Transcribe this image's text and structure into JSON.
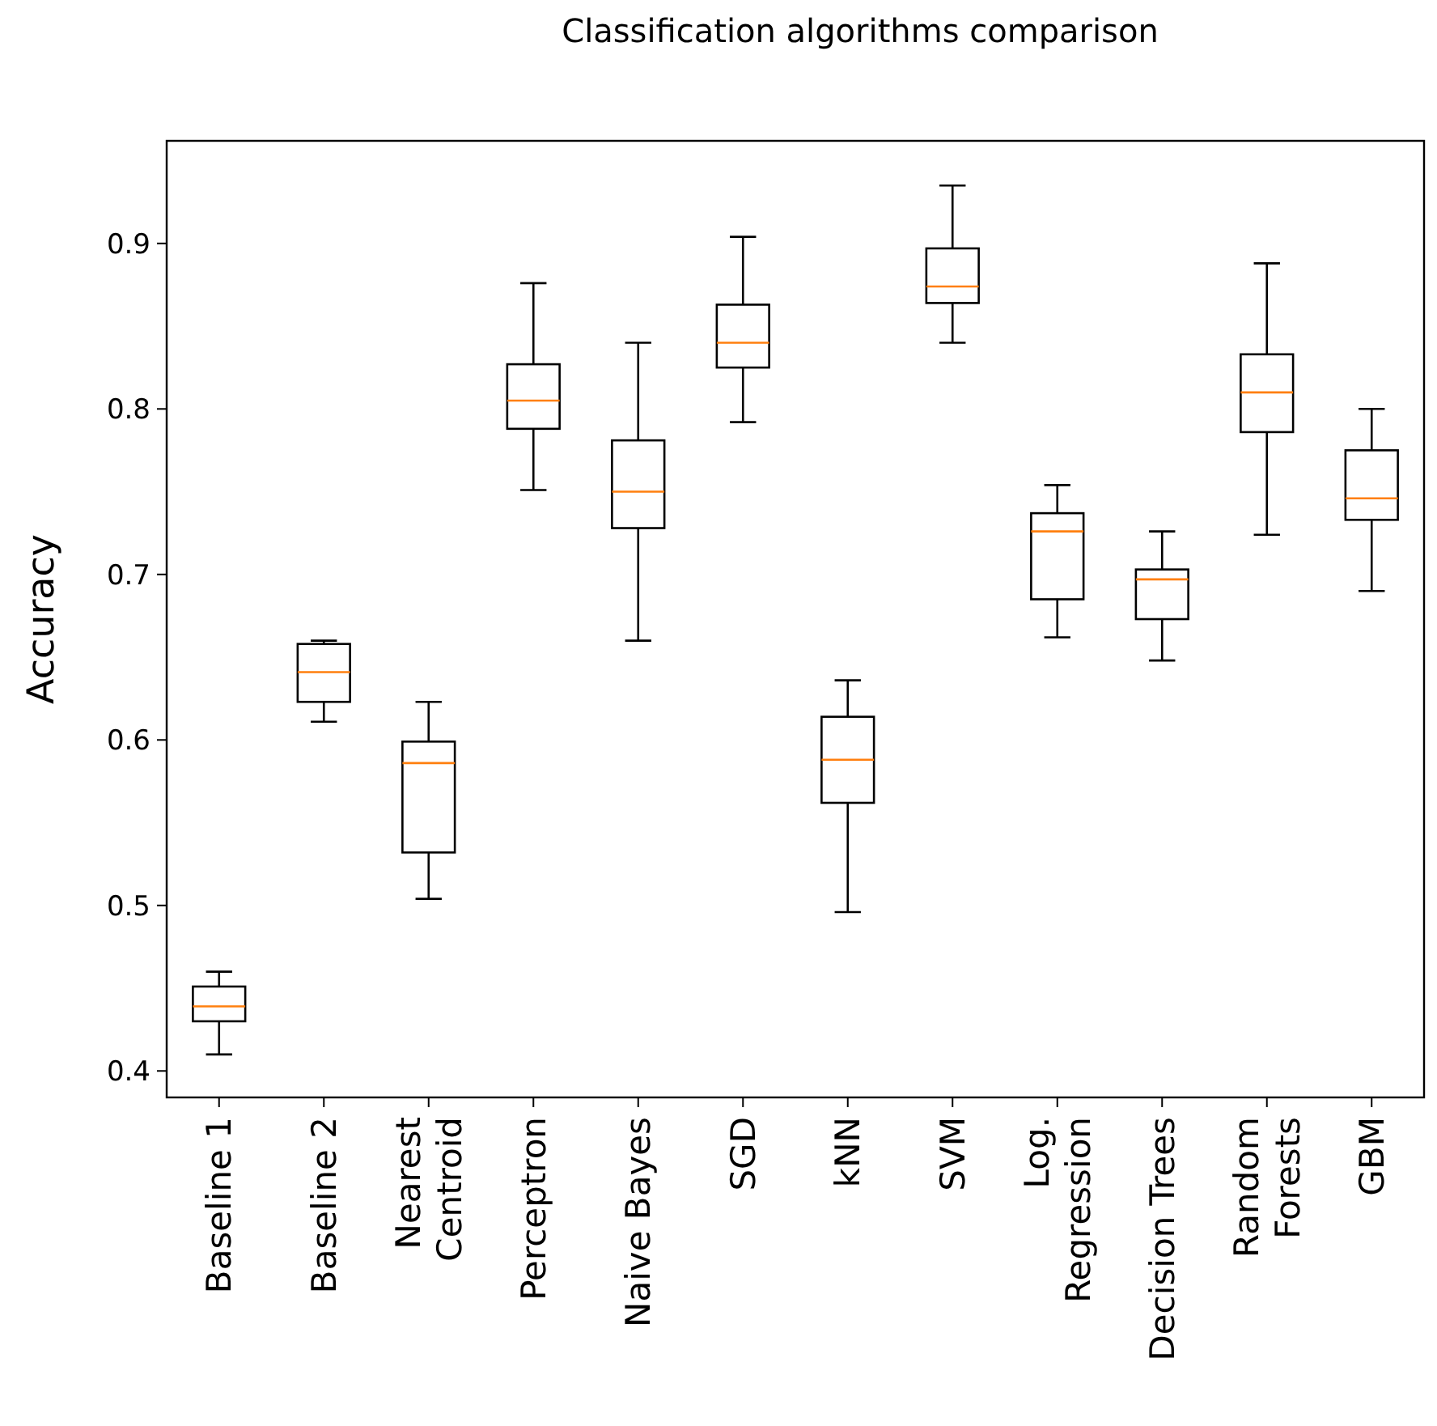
{
  "chart_data": {
    "type": "box",
    "title": "Classification algorithms comparison",
    "ylabel": "Accuracy",
    "categories": [
      "Baseline 1",
      "Baseline 2",
      "Nearest\nCentroid",
      "Perceptron",
      "Naive Bayes",
      "SGD",
      "kNN",
      "SVM",
      "Log.\nRegression",
      "Decision Trees",
      "Random\nForests",
      "GBM"
    ],
    "boxes": [
      {
        "low": 0.41,
        "q1": 0.43,
        "median": 0.439,
        "q3": 0.451,
        "high": 0.46
      },
      {
        "low": 0.611,
        "q1": 0.623,
        "median": 0.641,
        "q3": 0.658,
        "high": 0.66
      },
      {
        "low": 0.504,
        "q1": 0.532,
        "median": 0.586,
        "q3": 0.599,
        "high": 0.623
      },
      {
        "low": 0.751,
        "q1": 0.788,
        "median": 0.805,
        "q3": 0.827,
        "high": 0.876
      },
      {
        "low": 0.66,
        "q1": 0.728,
        "median": 0.75,
        "q3": 0.781,
        "high": 0.84
      },
      {
        "low": 0.792,
        "q1": 0.825,
        "median": 0.84,
        "q3": 0.863,
        "high": 0.904
      },
      {
        "low": 0.496,
        "q1": 0.562,
        "median": 0.588,
        "q3": 0.614,
        "high": 0.636
      },
      {
        "low": 0.84,
        "q1": 0.864,
        "median": 0.874,
        "q3": 0.897,
        "high": 0.935
      },
      {
        "low": 0.662,
        "q1": 0.685,
        "median": 0.726,
        "q3": 0.737,
        "high": 0.754
      },
      {
        "low": 0.648,
        "q1": 0.673,
        "median": 0.697,
        "q3": 0.703,
        "high": 0.726
      },
      {
        "low": 0.724,
        "q1": 0.786,
        "median": 0.81,
        "q3": 0.833,
        "high": 0.888
      },
      {
        "low": 0.69,
        "q1": 0.733,
        "median": 0.746,
        "q3": 0.775,
        "high": 0.8
      }
    ],
    "color": "#000000",
    "ylim": [
      0.384,
      0.962
    ],
    "yticks": [
      0.4,
      0.5,
      0.6,
      0.7,
      0.8,
      0.9
    ],
    "grid": false
  }
}
